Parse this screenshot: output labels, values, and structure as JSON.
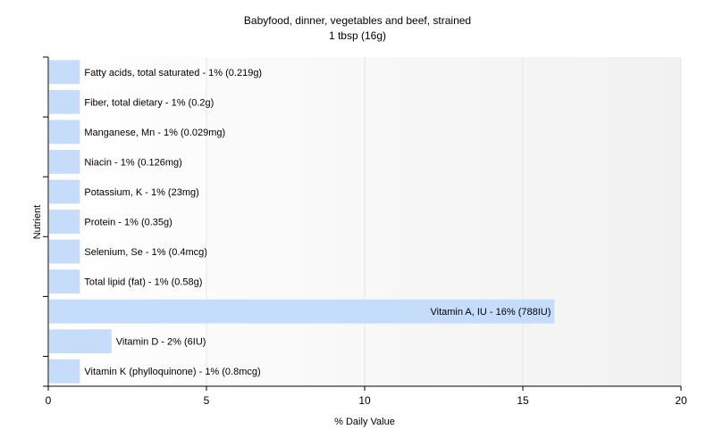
{
  "chart_data": {
    "type": "bar",
    "orientation": "horizontal",
    "title": "Babyfood, dinner, vegetables and beef, strained",
    "subtitle": "1 tbsp (16g)",
    "xlabel": "% Daily Value",
    "ylabel": "Nutrient",
    "xlim": [
      0,
      20
    ],
    "x_ticks": [
      "0",
      "5",
      "10",
      "15",
      "20"
    ],
    "grid": true,
    "categories": [
      "Fatty acids, total saturated",
      "Fiber, total dietary",
      "Manganese, Mn",
      "Niacin",
      "Potassium, K",
      "Protein",
      "Selenium, Se",
      "Total lipid (fat)",
      "Vitamin A, IU",
      "Vitamin D",
      "Vitamin K (phylloquinone)"
    ],
    "values": [
      1,
      1,
      1,
      1,
      1,
      1,
      1,
      1,
      16,
      2,
      1
    ],
    "labels": [
      "Fatty acids, total saturated - 1% (0.219g)",
      "Fiber, total dietary - 1% (0.2g)",
      "Manganese, Mn - 1% (0.029mg)",
      "Niacin - 1% (0.126mg)",
      "Potassium, K - 1% (23mg)",
      "Protein - 1% (0.35g)",
      "Selenium, Se - 1% (0.4mcg)",
      "Total lipid (fat) - 1% (0.58g)",
      "Vitamin A, IU - 16% (788IU)",
      "Vitamin D - 2% (6IU)",
      "Vitamin K (phylloquinone) - 1% (0.8mcg)"
    ],
    "colors": {
      "bar": "#c6dcfb",
      "grid": "#e6e6e6",
      "axis": "#000000",
      "plot_bg_start": "#ffffff",
      "plot_bg_end": "#f1f1f1"
    }
  }
}
